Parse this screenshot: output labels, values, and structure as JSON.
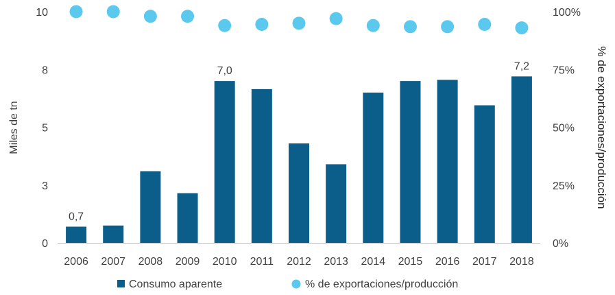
{
  "chart_data": {
    "type": "bar",
    "categories": [
      "2006",
      "2007",
      "2008",
      "2009",
      "2010",
      "2011",
      "2012",
      "2013",
      "2014",
      "2015",
      "2016",
      "2017",
      "2018"
    ],
    "series": [
      {
        "name": "Consumo aparente",
        "type": "bar",
        "axis": "left",
        "color": "#0b5e8a",
        "values": [
          0.7,
          0.75,
          3.1,
          2.15,
          7.0,
          6.65,
          4.3,
          3.4,
          6.5,
          7.0,
          7.05,
          5.95,
          7.2
        ]
      },
      {
        "name": "% de exportaciones/producción",
        "type": "scatter",
        "axis": "right",
        "color": "#5bc8ee",
        "values": [
          100,
          100,
          98,
          98,
          94,
          94.5,
          95,
          97,
          94,
          93.5,
          93.5,
          94.5,
          93
        ]
      }
    ],
    "data_labels": [
      {
        "category": "2006",
        "text": "0,7"
      },
      {
        "category": "2010",
        "text": "7,0"
      },
      {
        "category": "2018",
        "text": "7,2"
      }
    ],
    "y_left": {
      "label": "Miles de tn",
      "min": 0,
      "max": 10,
      "tick_values": [
        0,
        2.5,
        5,
        7.5,
        10
      ],
      "tick_labels": [
        "0",
        "3",
        "5",
        "8",
        "10"
      ]
    },
    "y_right": {
      "label": "% de exportaciones/producción",
      "min": 0,
      "max": 100,
      "tick_values": [
        0,
        25,
        50,
        75,
        100
      ],
      "tick_labels": [
        "0%",
        "25%",
        "50%",
        "75%",
        "100%"
      ]
    },
    "grid": false,
    "legend_position": "bottom",
    "legend": [
      {
        "label": "Consumo aparente",
        "marker": "square"
      },
      {
        "label": "% de exportaciones/producción",
        "marker": "circle"
      }
    ]
  }
}
